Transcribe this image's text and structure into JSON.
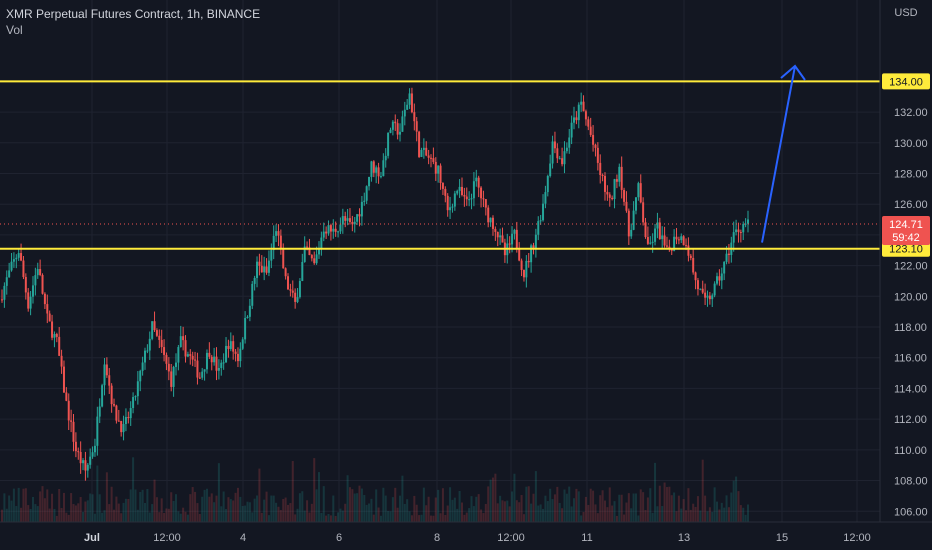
{
  "header": {
    "title": "XMR Perpetual Futures Contract, 1h, BINANCE",
    "volume_label": "Vol"
  },
  "colors": {
    "background": "#131722",
    "grid": "#1f2330",
    "up": "#26a69a",
    "down": "#ef5350",
    "level_line": "#ffeb3b",
    "arrow": "#2962ff",
    "text": "#b2b5be"
  },
  "chart_data": {
    "type": "candlestick",
    "y_unit": "USD",
    "ylim": [
      105.3,
      139.3
    ],
    "y_ticks": [
      "106.00",
      "108.00",
      "110.00",
      "112.00",
      "114.00",
      "116.00",
      "118.00",
      "120.00",
      "122.00",
      "124.00",
      "126.00",
      "128.00",
      "130.00",
      "132.00",
      "134.00"
    ],
    "x_ticks": [
      {
        "label": "Jul",
        "bold": true
      },
      {
        "label": "12:00",
        "bold": false
      },
      {
        "label": "4",
        "bold": false
      },
      {
        "label": "6",
        "bold": false
      },
      {
        "label": "8",
        "bold": false
      },
      {
        "label": "12:00",
        "bold": false
      },
      {
        "label": "11",
        "bold": false
      },
      {
        "label": "13",
        "bold": false
      },
      {
        "label": "15",
        "bold": false
      },
      {
        "label": "12:00",
        "bold": false
      }
    ],
    "price_path_anchors": [
      [
        0,
        119.8
      ],
      [
        4,
        121.5
      ],
      [
        8,
        123.0
      ],
      [
        12,
        119.5
      ],
      [
        16,
        122.0
      ],
      [
        20,
        118.5
      ],
      [
        24,
        117.0
      ],
      [
        28,
        113.0
      ],
      [
        32,
        110.0
      ],
      [
        36,
        108.6
      ],
      [
        40,
        110.5
      ],
      [
        44,
        116.0
      ],
      [
        48,
        112.5
      ],
      [
        52,
        111.3
      ],
      [
        56,
        113.0
      ],
      [
        60,
        115.5
      ],
      [
        64,
        118.0
      ],
      [
        68,
        116.5
      ],
      [
        72,
        114.5
      ],
      [
        76,
        117.0
      ],
      [
        80,
        116.0
      ],
      [
        84,
        114.8
      ],
      [
        88,
        116.5
      ],
      [
        92,
        115.0
      ],
      [
        96,
        117.0
      ],
      [
        100,
        116.0
      ],
      [
        104,
        119.0
      ],
      [
        108,
        122.0
      ],
      [
        112,
        121.5
      ],
      [
        116,
        124.5
      ],
      [
        120,
        121.0
      ],
      [
        124,
        119.5
      ],
      [
        128,
        123.0
      ],
      [
        132,
        122.0
      ],
      [
        136,
        124.5
      ],
      [
        140,
        124.2
      ],
      [
        144,
        125.0
      ],
      [
        148,
        124.5
      ],
      [
        152,
        126.0
      ],
      [
        156,
        128.5
      ],
      [
        160,
        128.0
      ],
      [
        164,
        131.0
      ],
      [
        168,
        130.8
      ],
      [
        172,
        133.2
      ],
      [
        176,
        129.5
      ],
      [
        180,
        129.0
      ],
      [
        184,
        128.2
      ],
      [
        188,
        125.5
      ],
      [
        192,
        127.0
      ],
      [
        196,
        126.0
      ],
      [
        200,
        127.5
      ],
      [
        204,
        125.5
      ],
      [
        208,
        124.5
      ],
      [
        212,
        122.7
      ],
      [
        216,
        124.0
      ],
      [
        220,
        121.5
      ],
      [
        224,
        123.5
      ],
      [
        228,
        126.0
      ],
      [
        232,
        130.0
      ],
      [
        236,
        128.8
      ],
      [
        240,
        131.0
      ],
      [
        244,
        132.5
      ],
      [
        248,
        130.5
      ],
      [
        252,
        128.0
      ],
      [
        256,
        126.0
      ],
      [
        260,
        128.5
      ],
      [
        264,
        124.0
      ],
      [
        268,
        127.0
      ],
      [
        272,
        123.0
      ],
      [
        276,
        124.5
      ],
      [
        280,
        122.8
      ],
      [
        284,
        124.0
      ],
      [
        288,
        123.6
      ],
      [
        292,
        121.0
      ],
      [
        296,
        119.5
      ],
      [
        300,
        120.5
      ],
      [
        304,
        122.0
      ],
      [
        308,
        124.0
      ],
      [
        312,
        124.71
      ]
    ],
    "candle_count": 314,
    "lower_level": 123.1,
    "upper_level": 134.0,
    "current_price": "124.71",
    "countdown": "59:42",
    "lower_level_label": "123.10",
    "upper_level_label": "134.00",
    "projection_arrow": {
      "from": 123.5,
      "to": 135.0
    }
  }
}
